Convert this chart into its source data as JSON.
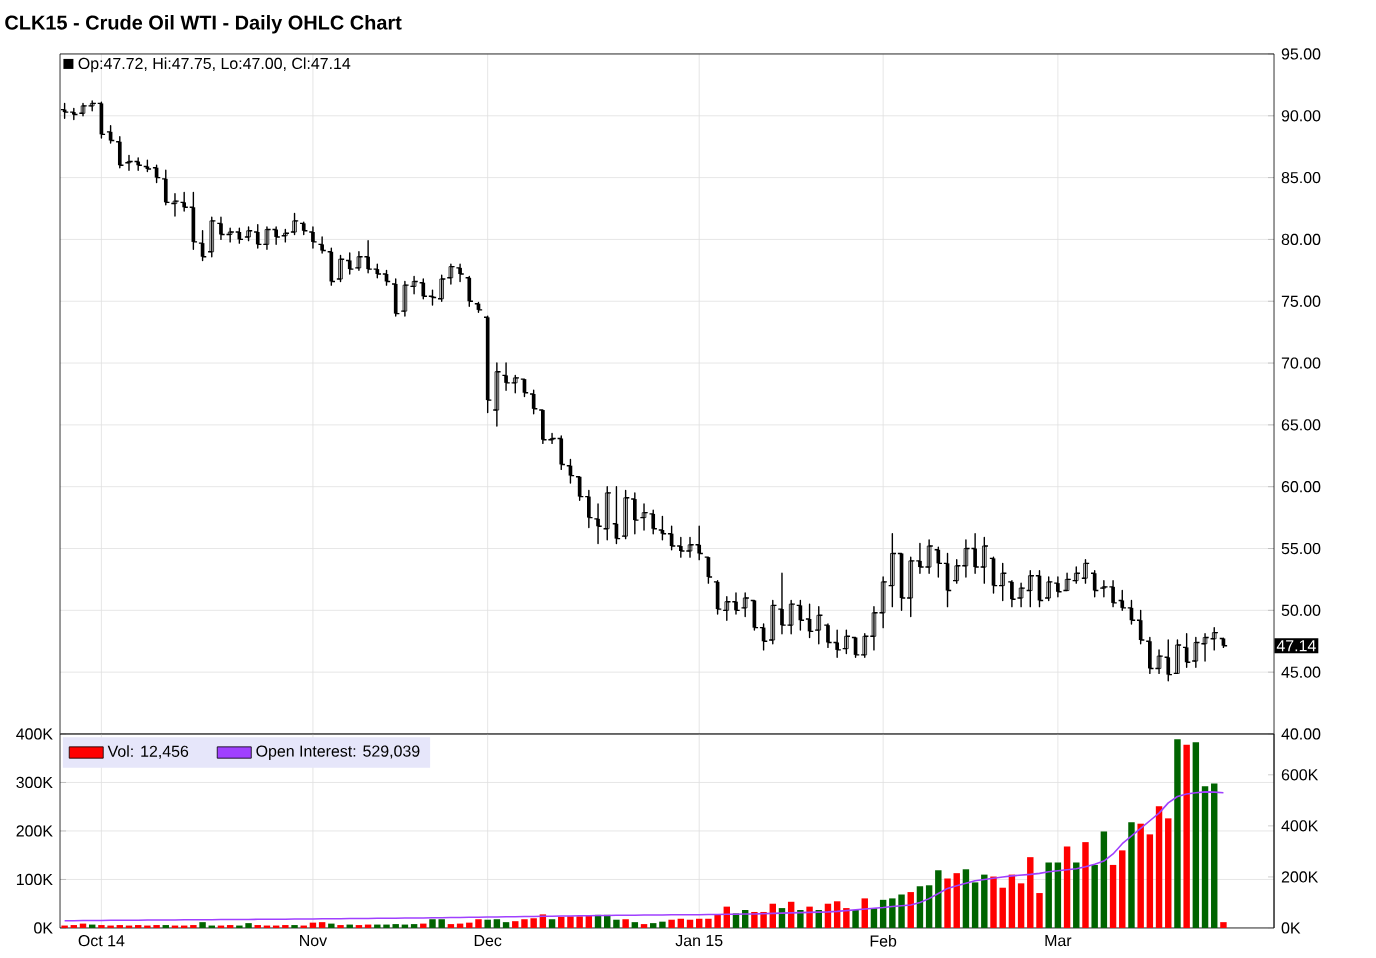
{
  "chart_data": [
    {
      "type": "candlestick",
      "title": "CLK15 - Crude Oil WTI - Daily OHLC Chart",
      "color": "#000000",
      "categories": [
        null,
        null,
        null,
        null,
        null,
        null,
        null,
        null,
        null,
        null,
        null,
        null,
        null,
        null,
        null,
        null,
        null,
        null,
        null,
        null,
        null,
        null,
        null,
        null,
        null,
        null,
        null,
        null,
        null,
        null,
        null,
        null,
        null,
        null,
        null,
        null,
        null,
        null,
        null,
        null,
        null,
        null,
        null,
        null,
        null,
        null,
        null,
        null,
        null,
        null,
        null,
        null,
        null,
        null,
        null,
        null,
        null,
        null,
        null,
        null,
        null,
        null,
        null,
        null,
        null,
        null,
        null,
        null,
        null,
        null,
        null,
        null,
        null,
        null,
        null,
        null,
        null,
        null,
        null,
        null,
        null,
        null,
        null,
        null,
        null,
        null,
        null,
        null,
        null,
        null,
        null,
        null,
        null,
        null,
        null,
        null,
        null,
        null,
        null,
        null,
        null,
        null,
        null,
        null,
        null,
        null,
        null,
        null,
        null,
        null,
        null,
        null,
        null,
        null,
        null,
        null,
        null,
        null,
        null,
        null,
        null,
        null,
        null,
        null,
        null,
        null,
        null
      ],
      "ohlc": [
        [
          90.5,
          91.0,
          89.8,
          90.3
        ],
        [
          90.3,
          90.6,
          89.7,
          90.1
        ],
        [
          90.2,
          91.0,
          90.0,
          90.8
        ],
        [
          90.8,
          91.2,
          90.4,
          91.0
        ],
        [
          91.0,
          91.1,
          88.2,
          88.5
        ],
        [
          88.7,
          89.2,
          87.8,
          88.0
        ],
        [
          87.9,
          88.3,
          85.8,
          86.0
        ],
        [
          86.2,
          86.8,
          85.6,
          86.3
        ],
        [
          86.3,
          86.6,
          85.6,
          86.0
        ],
        [
          85.9,
          86.4,
          85.5,
          85.7
        ],
        [
          85.8,
          86.0,
          84.6,
          85.0
        ],
        [
          84.9,
          85.6,
          82.8,
          83.0
        ],
        [
          82.9,
          83.7,
          81.9,
          83.1
        ],
        [
          83.0,
          83.8,
          82.3,
          82.6
        ],
        [
          82.6,
          83.8,
          79.2,
          79.8
        ],
        [
          79.7,
          80.7,
          78.3,
          78.6
        ],
        [
          79.0,
          81.8,
          78.6,
          81.5
        ],
        [
          81.3,
          81.8,
          80.0,
          80.4
        ],
        [
          80.4,
          80.9,
          79.8,
          80.6
        ],
        [
          80.6,
          80.9,
          79.7,
          80.0
        ],
        [
          80.2,
          81.0,
          79.9,
          80.7
        ],
        [
          80.6,
          81.2,
          79.3,
          79.6
        ],
        [
          79.6,
          81.0,
          79.2,
          80.8
        ],
        [
          80.8,
          81.0,
          79.6,
          80.2
        ],
        [
          80.3,
          80.8,
          79.8,
          80.5
        ],
        [
          80.6,
          82.1,
          80.4,
          81.5
        ],
        [
          81.3,
          81.4,
          80.4,
          80.7
        ],
        [
          80.6,
          81.0,
          79.3,
          79.8
        ],
        [
          79.6,
          80.2,
          78.9,
          79.1
        ],
        [
          79.0,
          79.3,
          76.3,
          76.6
        ],
        [
          76.8,
          78.7,
          76.6,
          78.4
        ],
        [
          78.3,
          78.9,
          77.2,
          77.6
        ],
        [
          77.7,
          79.0,
          77.5,
          78.6
        ],
        [
          78.6,
          79.9,
          77.3,
          77.6
        ],
        [
          77.6,
          78.0,
          76.9,
          77.2
        ],
        [
          77.2,
          77.5,
          76.3,
          76.6
        ],
        [
          76.4,
          76.8,
          73.8,
          74.0
        ],
        [
          74.2,
          76.6,
          73.8,
          76.3
        ],
        [
          76.2,
          77.0,
          75.6,
          76.6
        ],
        [
          76.5,
          76.8,
          75.2,
          75.4
        ],
        [
          75.4,
          75.9,
          74.7,
          75.3
        ],
        [
          75.2,
          77.1,
          75.0,
          76.8
        ],
        [
          76.9,
          78.0,
          76.4,
          77.8
        ],
        [
          77.7,
          78.0,
          76.6,
          77.2
        ],
        [
          76.9,
          77.0,
          74.6,
          75.0
        ],
        [
          74.8,
          74.9,
          74.1,
          74.3
        ],
        [
          73.7,
          73.8,
          66.0,
          67.0
        ],
        [
          66.2,
          70.0,
          64.9,
          69.3
        ],
        [
          69.0,
          70.0,
          67.8,
          68.4
        ],
        [
          68.4,
          69.0,
          67.6,
          68.8
        ],
        [
          68.7,
          68.7,
          67.3,
          67.6
        ],
        [
          67.5,
          67.8,
          65.9,
          66.3
        ],
        [
          66.2,
          66.2,
          63.5,
          63.8
        ],
        [
          63.8,
          64.3,
          63.5,
          63.9
        ],
        [
          63.9,
          64.1,
          61.4,
          61.8
        ],
        [
          61.7,
          62.2,
          60.3,
          60.9
        ],
        [
          60.8,
          60.8,
          58.9,
          59.2
        ],
        [
          59.2,
          59.7,
          56.7,
          57.5
        ],
        [
          57.4,
          58.6,
          55.4,
          56.8
        ],
        [
          56.6,
          60.0,
          55.7,
          59.5
        ],
        [
          57.0,
          60.0,
          55.4,
          55.8
        ],
        [
          56.0,
          59.7,
          55.8,
          59.1
        ],
        [
          59.0,
          59.5,
          56.2,
          57.3
        ],
        [
          57.5,
          58.6,
          56.5,
          57.9
        ],
        [
          57.8,
          58.1,
          56.2,
          56.6
        ],
        [
          56.5,
          57.6,
          55.7,
          56.2
        ],
        [
          56.2,
          56.8,
          54.9,
          55.2
        ],
        [
          55.2,
          55.9,
          54.3,
          54.8
        ],
        [
          54.8,
          55.9,
          54.3,
          55.3
        ],
        [
          55.3,
          56.8,
          54.1,
          54.6
        ],
        [
          54.3,
          54.3,
          52.2,
          52.7
        ],
        [
          52.3,
          52.4,
          49.7,
          50.1
        ],
        [
          50.0,
          51.1,
          49.2,
          50.7
        ],
        [
          50.7,
          51.4,
          49.7,
          50.0
        ],
        [
          50.2,
          51.4,
          49.5,
          51.0
        ],
        [
          50.8,
          50.8,
          48.4,
          48.6
        ],
        [
          48.6,
          48.9,
          46.8,
          47.5
        ],
        [
          47.6,
          50.8,
          47.3,
          50.4
        ],
        [
          50.1,
          53.0,
          48.1,
          48.8
        ],
        [
          48.8,
          50.8,
          48.1,
          50.5
        ],
        [
          50.4,
          50.8,
          48.4,
          49.2
        ],
        [
          49.3,
          50.5,
          47.8,
          48.3
        ],
        [
          48.4,
          50.3,
          47.3,
          49.6
        ],
        [
          48.8,
          48.9,
          47.0,
          47.4
        ],
        [
          47.4,
          48.4,
          46.2,
          46.8
        ],
        [
          46.9,
          48.4,
          46.5,
          47.9
        ],
        [
          47.8,
          47.8,
          46.2,
          46.4
        ],
        [
          46.4,
          48.1,
          46.2,
          47.9
        ],
        [
          47.9,
          50.3,
          46.8,
          49.8
        ],
        [
          49.8,
          52.7,
          48.6,
          52.3
        ],
        [
          52.0,
          56.2,
          50.3,
          54.6
        ],
        [
          54.6,
          54.6,
          50.0,
          51.0
        ],
        [
          51.0,
          54.3,
          49.5,
          54.0
        ],
        [
          54.0,
          55.4,
          53.0,
          53.5
        ],
        [
          53.5,
          55.7,
          53.0,
          55.2
        ],
        [
          54.9,
          55.1,
          52.7,
          53.8
        ],
        [
          53.8,
          54.6,
          50.3,
          51.6
        ],
        [
          52.4,
          54.1,
          52.2,
          53.6
        ],
        [
          53.6,
          55.7,
          52.7,
          55.0
        ],
        [
          55.0,
          56.2,
          53.0,
          53.5
        ],
        [
          53.5,
          55.9,
          52.2,
          55.2
        ],
        [
          54.2,
          54.3,
          51.4,
          52.0
        ],
        [
          52.0,
          53.8,
          50.8,
          53.0
        ],
        [
          52.3,
          52.4,
          50.3,
          50.9
        ],
        [
          51.0,
          52.2,
          50.3,
          51.8
        ],
        [
          51.6,
          53.2,
          50.3,
          52.8
        ],
        [
          52.8,
          53.2,
          50.3,
          50.8
        ],
        [
          51.0,
          52.7,
          50.8,
          52.3
        ],
        [
          52.2,
          52.7,
          51.1,
          51.5
        ],
        [
          51.6,
          53.0,
          51.6,
          52.5
        ],
        [
          52.4,
          53.5,
          52.2,
          53.0
        ],
        [
          52.6,
          54.1,
          52.2,
          53.8
        ],
        [
          53.0,
          53.2,
          51.1,
          51.6
        ],
        [
          51.8,
          52.4,
          51.1,
          51.9
        ],
        [
          51.9,
          52.4,
          50.3,
          50.6
        ],
        [
          50.8,
          51.6,
          50.0,
          50.2
        ],
        [
          50.2,
          50.8,
          48.9,
          49.2
        ],
        [
          49.2,
          50.0,
          47.3,
          47.6
        ],
        [
          47.5,
          47.8,
          44.9,
          45.3
        ],
        [
          45.3,
          46.8,
          44.9,
          46.3
        ],
        [
          46.2,
          47.6,
          44.3,
          44.8
        ],
        [
          44.9,
          47.6,
          44.9,
          47.2
        ],
        [
          47.0,
          48.1,
          45.4,
          45.8
        ],
        [
          45.9,
          47.8,
          45.4,
          47.4
        ],
        [
          47.3,
          48.1,
          45.9,
          47.8
        ],
        [
          47.7,
          48.6,
          46.8,
          48.2
        ],
        [
          47.72,
          47.75,
          47.0,
          47.14
        ]
      ],
      "ylim": [
        40,
        95
      ],
      "yticks": [
        {
          "value": 40,
          "label": "40.00"
        },
        {
          "value": 45,
          "label": "45.00"
        },
        {
          "value": 50,
          "label": "50.00"
        },
        {
          "value": 55,
          "label": "55.00"
        },
        {
          "value": 60,
          "label": "60.00"
        },
        {
          "value": 65,
          "label": "65.00"
        },
        {
          "value": 70,
          "label": "70.00"
        },
        {
          "value": 75,
          "label": "75.00"
        },
        {
          "value": 80,
          "label": "80.00"
        },
        {
          "value": 85,
          "label": "85.00"
        },
        {
          "value": 90,
          "label": "90.00"
        },
        {
          "value": 95,
          "label": "95.00"
        }
      ],
      "grid": true,
      "tick_labels": "y",
      "annotations": [
        "Op:47.72, Hi:47.75, Lo:47.00, Cl:47.14",
        "47.14"
      ]
    },
    {
      "type": "bar",
      "categories": [
        null,
        null,
        null,
        null,
        "Oct 14",
        null,
        null,
        null,
        null,
        null,
        null,
        null,
        null,
        null,
        null,
        null,
        null,
        null,
        null,
        null,
        null,
        null,
        null,
        null,
        null,
        null,
        null,
        "Nov",
        null,
        null,
        null,
        null,
        null,
        null,
        null,
        null,
        null,
        null,
        null,
        null,
        null,
        null,
        null,
        null,
        null,
        null,
        "Dec",
        null,
        null,
        null,
        null,
        null,
        null,
        null,
        null,
        null,
        null,
        null,
        null,
        null,
        null,
        null,
        null,
        null,
        null,
        null,
        null,
        null,
        null,
        "Jan 15",
        null,
        null,
        null,
        null,
        null,
        null,
        null,
        null,
        null,
        null,
        null,
        null,
        null,
        null,
        null,
        null,
        null,
        null,
        null,
        "Feb",
        null,
        null,
        null,
        null,
        null,
        null,
        null,
        null,
        null,
        null,
        null,
        null,
        null,
        null,
        null,
        null,
        null,
        null,
        "Mar",
        null,
        null,
        null,
        null,
        null,
        null,
        null,
        null,
        null,
        null,
        null,
        null,
        null,
        null,
        null,
        null,
        null,
        null
      ],
      "series": [
        {
          "name": "Vol: 12,456",
          "color": "#ff0000",
          "values": [
            5000,
            6000,
            9000,
            7000,
            6000,
            5000,
            6000,
            5000,
            6000,
            5000,
            6000,
            6000,
            5000,
            5000,
            6000,
            12000,
            5000,
            5000,
            6000,
            5000,
            10000,
            6000,
            5000,
            5000,
            6000,
            6000,
            5000,
            11000,
            12000,
            9000,
            6000,
            7000,
            6000,
            7000,
            7000,
            7000,
            8000,
            7000,
            8000,
            9000,
            18000,
            18000,
            8000,
            9000,
            11000,
            18000,
            17000,
            18000,
            12000,
            14000,
            18000,
            20000,
            28000,
            18000,
            23000,
            24000,
            24000,
            25000,
            27000,
            27000,
            17000,
            18000,
            12000,
            8000,
            10000,
            13000,
            17000,
            19000,
            17000,
            19000,
            19000,
            28000,
            44000,
            30000,
            37000,
            33000,
            33000,
            50000,
            41000,
            54000,
            37000,
            44000,
            37000,
            50000,
            55000,
            41000,
            37000,
            61000,
            41000,
            58000,
            61000,
            69000,
            74000,
            86000,
            88000,
            119000,
            102000,
            113000,
            121000,
            94000,
            110000,
            106000,
            83000,
            110000,
            92000,
            146000,
            72000,
            135000,
            135000,
            168000,
            135000,
            177000,
            130000,
            199000,
            130000,
            160000,
            218000,
            215000,
            193000,
            251000,
            226000,
            389000,
            378000,
            383000,
            292000,
            298000,
            12000
          ],
          "colors": [
            "#ff0000",
            "#ff0000",
            "#ff0000",
            "#006400",
            "#ff0000",
            "#ff0000",
            "#ff0000",
            "#ff0000",
            "#ff0000",
            "#ff0000",
            "#ff0000",
            "#006400",
            "#ff0000",
            "#ff0000",
            "#ff0000",
            "#006400",
            "#006400",
            "#ff0000",
            "#ff0000",
            "#006400",
            "#006400",
            "#ff0000",
            "#ff0000",
            "#ff0000",
            "#ff0000",
            "#006400",
            "#ff0000",
            "#ff0000",
            "#ff0000",
            "#006400",
            "#ff0000",
            "#006400",
            "#ff0000",
            "#ff0000",
            "#006400",
            "#006400",
            "#006400",
            "#006400",
            "#006400",
            "#ff0000",
            "#006400",
            "#006400",
            "#ff0000",
            "#ff0000",
            "#ff0000",
            "#ff0000",
            "#006400",
            "#006400",
            "#006400",
            "#ff0000",
            "#ff0000",
            "#ff0000",
            "#ff0000",
            "#006400",
            "#ff0000",
            "#ff0000",
            "#ff0000",
            "#ff0000",
            "#006400",
            "#006400",
            "#006400",
            "#ff0000",
            "#006400",
            "#ff0000",
            "#006400",
            "#006400",
            "#ff0000",
            "#ff0000",
            "#ff0000",
            "#ff0000",
            "#ff0000",
            "#ff0000",
            "#ff0000",
            "#006400",
            "#006400",
            "#ff0000",
            "#ff0000",
            "#ff0000",
            "#006400",
            "#ff0000",
            "#006400",
            "#ff0000",
            "#006400",
            "#ff0000",
            "#ff0000",
            "#ff0000",
            "#006400",
            "#ff0000",
            "#006400",
            "#006400",
            "#006400",
            "#006400",
            "#ff0000",
            "#006400",
            "#006400",
            "#006400",
            "#ff0000",
            "#ff0000",
            "#006400",
            "#006400",
            "#006400",
            "#ff0000",
            "#ff0000",
            "#ff0000",
            "#ff0000",
            "#ff0000",
            "#ff0000",
            "#006400",
            "#006400",
            "#ff0000",
            "#006400",
            "#ff0000",
            "#006400",
            "#006400",
            "#ff0000",
            "#ff0000",
            "#006400",
            "#ff0000",
            "#ff0000",
            "#ff0000",
            "#ff0000",
            "#006400",
            "#ff0000",
            "#006400",
            "#006400",
            "#006400",
            "#ff0000"
          ]
        },
        {
          "name": "Open Interest: 529,039",
          "type": "line",
          "axis": "y2",
          "color": "#a040ff",
          "values": [
            28000,
            28000,
            29000,
            29000,
            29000,
            30000,
            30000,
            30000,
            30000,
            31000,
            31000,
            31000,
            31000,
            32000,
            32000,
            32000,
            32000,
            33000,
            33000,
            33000,
            33000,
            34000,
            34000,
            34000,
            34000,
            35000,
            35000,
            35000,
            36000,
            36000,
            36000,
            37000,
            37000,
            37000,
            38000,
            38000,
            38000,
            39000,
            39000,
            39000,
            40000,
            40000,
            41000,
            41000,
            42000,
            42000,
            43000,
            43000,
            44000,
            44000,
            45000,
            45000,
            46000,
            46000,
            47000,
            47000,
            48000,
            48000,
            49000,
            49000,
            50000,
            50000,
            50000,
            51000,
            51000,
            51000,
            52000,
            52000,
            52000,
            52000,
            53000,
            53000,
            54000,
            54000,
            55000,
            55000,
            56000,
            57000,
            58000,
            59000,
            60000,
            61000,
            62000,
            63000,
            65000,
            68000,
            71000,
            74000,
            77000,
            80000,
            84000,
            87000,
            90000,
            100000,
            115000,
            135000,
            155000,
            165000,
            175000,
            185000,
            190000,
            195000,
            200000,
            204000,
            207000,
            210000,
            214000,
            220000,
            224000,
            228000,
            232000,
            240000,
            250000,
            262000,
            290000,
            330000,
            360000,
            390000,
            420000,
            450000,
            490000,
            515000,
            525000,
            530000,
            533000,
            532000,
            530000
          ]
        }
      ],
      "ylim": [
        0,
        400000
      ],
      "yticks": [
        {
          "value": 0,
          "label": "0K"
        },
        {
          "value": 100000,
          "label": "100K"
        },
        {
          "value": 200000,
          "label": "200K"
        },
        {
          "value": 300000,
          "label": "300K"
        },
        {
          "value": 400000,
          "label": "400K"
        }
      ],
      "y2lim": [
        0,
        760000
      ],
      "y2ticks": [
        {
          "value": 0,
          "label": "0K"
        },
        {
          "value": 200000,
          "label": "200K"
        },
        {
          "value": 400000,
          "label": "400K"
        },
        {
          "value": 600000,
          "label": "600K"
        }
      ],
      "grid": true,
      "legend": "top left"
    }
  ]
}
